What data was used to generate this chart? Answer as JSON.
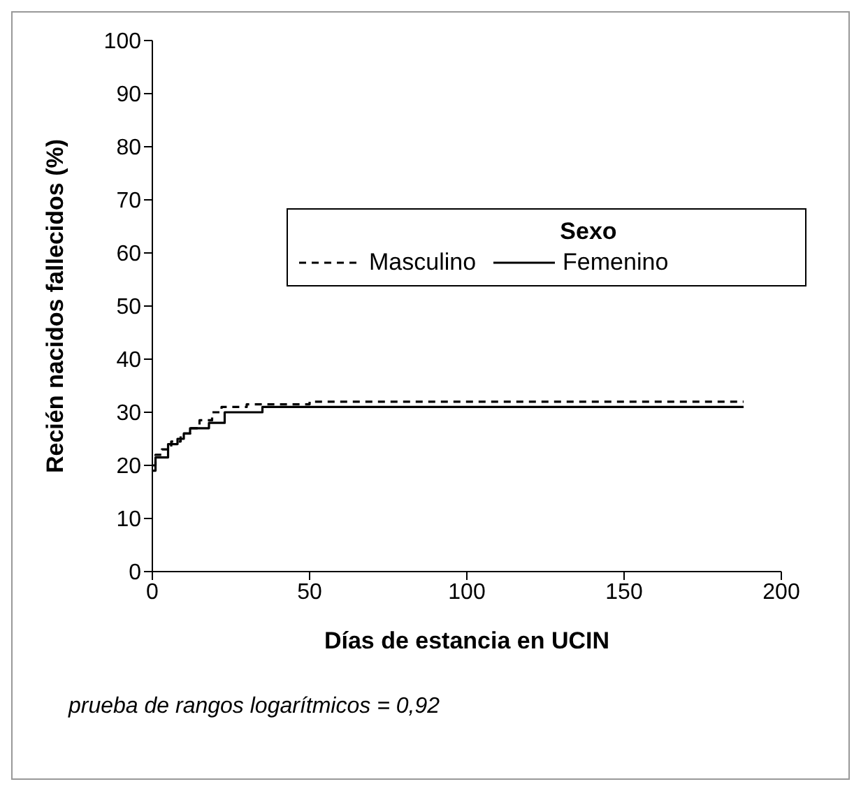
{
  "chart_data": {
    "type": "step",
    "xlabel": "Días de estancia en UCIN",
    "ylabel": "Recién nacidos fallecidos (%)",
    "legend_title": "Sexo",
    "legend": "top right",
    "grid": false,
    "marker": "none",
    "xlim": [
      0,
      200
    ],
    "xticks": [
      0,
      50,
      100,
      150,
      200
    ],
    "ylim": [
      0,
      100
    ],
    "yticks": [
      0,
      10,
      20,
      30,
      40,
      50,
      60,
      70,
      80,
      90,
      100
    ],
    "series": [
      {
        "name": "Masculino",
        "color": "#000000",
        "line_style": "dashed",
        "x": [
          0,
          1,
          3,
          6,
          9,
          12,
          15,
          19,
          22,
          30,
          50,
          188
        ],
        "values": [
          20,
          22,
          23,
          24.5,
          26,
          27,
          28.5,
          30,
          31,
          31.5,
          32,
          32
        ]
      },
      {
        "name": "Femenino",
        "color": "#000000",
        "line_style": "solid",
        "x": [
          0,
          1,
          5,
          8,
          10,
          12,
          18,
          23,
          35,
          188
        ],
        "values": [
          19,
          21.5,
          24,
          25,
          26,
          27,
          28,
          30,
          31,
          31
        ]
      }
    ],
    "annotations": [
      "prueba de rangos logarítmicos = 0,92"
    ]
  }
}
